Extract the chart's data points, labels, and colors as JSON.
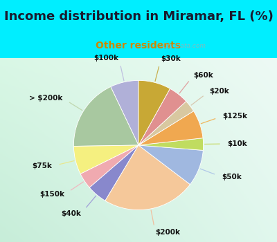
{
  "title": "Income distribution in Miramar, FL (%)",
  "subtitle": "Other residents",
  "title_color": "#1a1a2e",
  "subtitle_color": "#cc8800",
  "bg_cyan": "#00eeff",
  "watermark": "City-Data.com",
  "labels": [
    "$100k",
    "> $200k",
    "$75k",
    "$150k",
    "$40k",
    "$200k",
    "$50k",
    "$10k",
    "$125k",
    "$20k",
    "$60k",
    "$30k"
  ],
  "values": [
    7,
    18,
    7,
    4,
    5,
    23,
    9,
    3,
    7,
    3,
    5,
    8
  ],
  "colors": [
    "#b0b0d8",
    "#a8c8a0",
    "#f5f080",
    "#f0aab0",
    "#8888cc",
    "#f5c89a",
    "#a0b8e0",
    "#c0dc60",
    "#f0a850",
    "#d8c8a0",
    "#e09090",
    "#c8a835"
  ],
  "line_colors": [
    "#c0c0e0",
    "#c0d8b0",
    "#e8e890",
    "#f0b8c0",
    "#a0a0d8",
    "#f0c0a0",
    "#b0c8e8",
    "#c8dc70",
    "#f0b860",
    "#d8c8b0",
    "#e0a0a0",
    "#c8b050"
  ],
  "startangle": 90,
  "label_fontsize": 7.5,
  "title_fontsize": 13,
  "subtitle_fontsize": 10
}
